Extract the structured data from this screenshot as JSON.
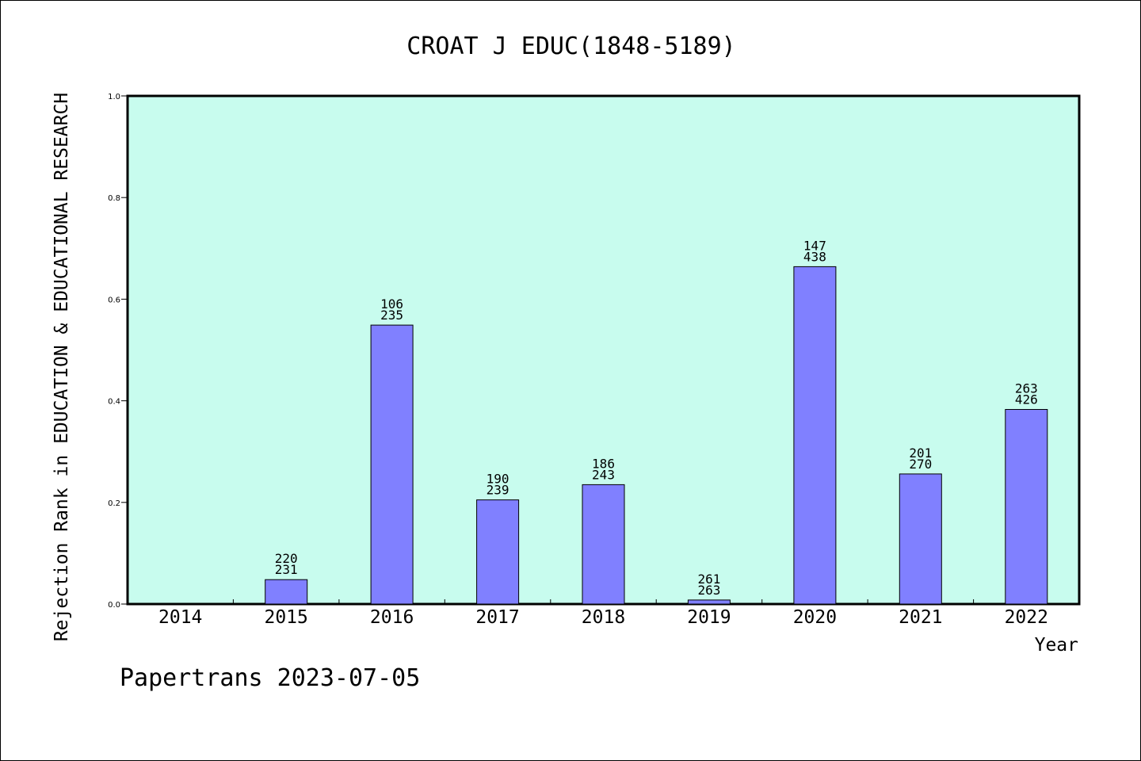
{
  "chart_data": {
    "type": "bar",
    "title": "CROAT J EDUC(1848-5189)",
    "xlabel": "Year",
    "ylabel": "Rejection Rank in EDUCATION & EDUCATIONAL RESEARCH",
    "categories": [
      "2014",
      "2015",
      "2016",
      "2017",
      "2018",
      "2019",
      "2020",
      "2021",
      "2022"
    ],
    "values": [
      null,
      0.048,
      0.549,
      0.205,
      0.235,
      0.008,
      0.664,
      0.256,
      0.383
    ],
    "bar_labels": [
      null,
      [
        "220",
        "231"
      ],
      [
        "106",
        "235"
      ],
      [
        "190",
        "239"
      ],
      [
        "186",
        "243"
      ],
      [
        "261",
        "263"
      ],
      [
        "147",
        "438"
      ],
      [
        "201",
        "270"
      ],
      [
        "263",
        "426"
      ]
    ],
    "ylim": [
      0,
      1.0
    ],
    "yticks": [
      "0.0",
      "0.2",
      "0.4",
      "0.6",
      "0.8",
      "1.0"
    ],
    "grid": false,
    "colors": {
      "plot_background": "#c8fcee",
      "bar_fill": "#8080ff",
      "bar_stroke": "#000000"
    }
  },
  "footer": "Papertrans 2023-07-05"
}
